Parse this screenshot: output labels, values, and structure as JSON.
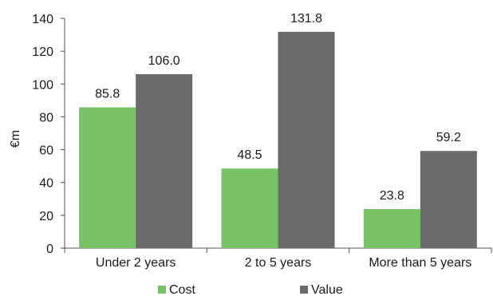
{
  "chart_data": {
    "type": "bar",
    "title": "",
    "xlabel": "",
    "ylabel": "€m",
    "categories": [
      "Under 2 years",
      "2 to 5 years",
      "More than 5 years"
    ],
    "series": [
      {
        "name": "Cost",
        "values": [
          85.8,
          48.5,
          23.8
        ],
        "color": "#77c365"
      },
      {
        "name": "Value",
        "values": [
          106.0,
          131.8,
          59.2
        ],
        "color": "#6b6b6b"
      }
    ],
    "data_labels": [
      [
        "85.8",
        "48.5",
        "23.8"
      ],
      [
        "106.0",
        "131.8",
        "59.2"
      ]
    ],
    "ylim": [
      0,
      140
    ],
    "yticks": [
      0,
      20,
      40,
      60,
      80,
      100,
      120,
      140
    ],
    "grid": false,
    "legend_position": "bottom"
  }
}
